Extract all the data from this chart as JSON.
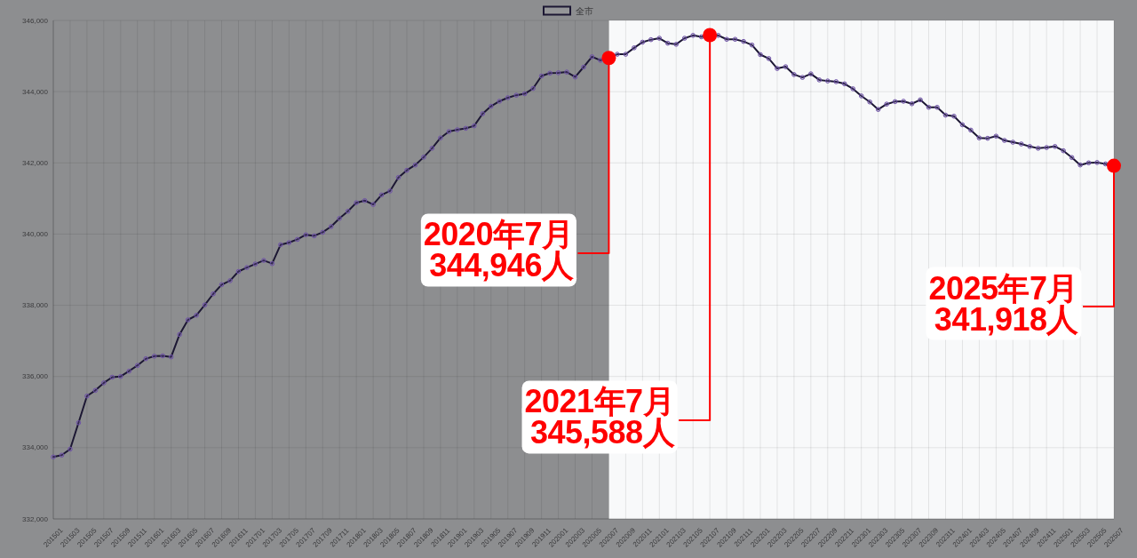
{
  "chart_data": {
    "type": "line",
    "categories": [
      "201501",
      null,
      "201503",
      null,
      "201505",
      null,
      "201507",
      null,
      "201509",
      null,
      "201511",
      null,
      "201601",
      null,
      "201603",
      null,
      "201605",
      null,
      "201607",
      null,
      "201609",
      null,
      "201611",
      null,
      "201701",
      null,
      "201703",
      null,
      "201705",
      null,
      "201707",
      null,
      "201709",
      null,
      "201711",
      null,
      "201801",
      null,
      "201803",
      null,
      "201805",
      null,
      "201807",
      null,
      "201809",
      null,
      "201811",
      null,
      "201901",
      null,
      "201903",
      null,
      "201905",
      null,
      "201907",
      null,
      "201909",
      null,
      "201911",
      null,
      "202001",
      null,
      "202003",
      null,
      "202005",
      null,
      "202007",
      null,
      "202009",
      null,
      "202011",
      null,
      "202101",
      null,
      "202103",
      null,
      "202105",
      null,
      "202107",
      null,
      "202109",
      null,
      "202111",
      null,
      "202201",
      null,
      "202203",
      null,
      "202205",
      null,
      "202207",
      null,
      "202209",
      null,
      "202211",
      null,
      "202301",
      null,
      "202303",
      null,
      "202305",
      null,
      "202307",
      null,
      "202309",
      null,
      "202311",
      null,
      "202401",
      null,
      "202403",
      null,
      "202405",
      null,
      "202407",
      null,
      "202409",
      null,
      "202411",
      null,
      "202501",
      null,
      "202503",
      null,
      "202505",
      null,
      "202507"
    ],
    "series": [
      {
        "name": "全市",
        "color": "#1c1733",
        "values": [
          333740,
          333790,
          333960,
          334700,
          335450,
          335610,
          335820,
          335980,
          336000,
          336150,
          336310,
          336500,
          336570,
          336580,
          336550,
          337180,
          337590,
          337720,
          338010,
          338320,
          338580,
          338690,
          338950,
          339060,
          339160,
          339260,
          339170,
          339700,
          339760,
          339850,
          339980,
          339950,
          340050,
          340210,
          340440,
          340640,
          340880,
          340940,
          340830,
          341100,
          341210,
          341590,
          341790,
          341940,
          342160,
          342410,
          342700,
          342880,
          342930,
          342970,
          343040,
          343380,
          343590,
          343730,
          343830,
          343900,
          343940,
          344090,
          344440,
          344520,
          344530,
          344550,
          344410,
          344690,
          344980,
          344880,
          344946,
          345050,
          345050,
          345230,
          345390,
          345460,
          345500,
          345360,
          345330,
          345500,
          345580,
          345540,
          345588,
          345580,
          345470,
          345470,
          345410,
          345310,
          345040,
          344930,
          344650,
          344700,
          344480,
          344400,
          344500,
          344330,
          344300,
          344280,
          344220,
          344080,
          343880,
          343710,
          343500,
          343650,
          343720,
          343730,
          343660,
          343770,
          343560,
          343560,
          343340,
          343310,
          343070,
          342920,
          342700,
          342690,
          342750,
          342630,
          342580,
          342530,
          342460,
          342410,
          342430,
          342460,
          342340,
          342150,
          341940,
          342000,
          342010,
          341970,
          341918
        ]
      }
    ],
    "ylim": [
      332000,
      346000
    ],
    "yticks": [
      {
        "value": 332000,
        "label": "332,000"
      },
      {
        "value": 334000,
        "label": "334,000"
      },
      {
        "value": 336000,
        "label": "336,000"
      },
      {
        "value": 338000,
        "label": "338,000"
      },
      {
        "value": 340000,
        "label": "340,000"
      },
      {
        "value": 342000,
        "label": "342,000"
      },
      {
        "value": 344000,
        "label": "344,000"
      },
      {
        "value": 346000,
        "label": "346,000"
      }
    ],
    "grid": true,
    "legend": "top",
    "marker": "circle",
    "bands": [
      {
        "axis": "x",
        "from": "202007",
        "to": "202507",
        "color": "#f8f9fa"
      }
    ],
    "annotations": [
      {
        "text": "2020年7月\n344,946人",
        "x": "202007",
        "y": 344946
      },
      {
        "text": "2021年7月\n345,588人",
        "x": "202107",
        "y": 345588
      },
      {
        "text": "2025年7月\n341,918人",
        "x": "202507",
        "y": 341918
      }
    ]
  }
}
